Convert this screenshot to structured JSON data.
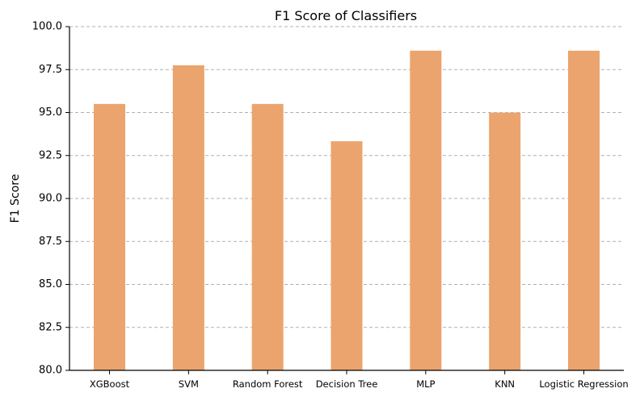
{
  "chart_data": {
    "type": "bar",
    "title": "F1 Score of Classifiers",
    "xlabel": "",
    "ylabel": "F1 Score",
    "categories": [
      "XGBoost",
      "SVM",
      "Random Forest",
      "Decision Tree",
      "MLP",
      "KNN",
      "Logistic Regression"
    ],
    "values": [
      95.5,
      97.75,
      95.5,
      93.33,
      98.6,
      95.0,
      98.6
    ],
    "ylim": [
      80.0,
      100.0
    ],
    "yticks": [
      "80.0",
      "82.5",
      "85.0",
      "87.5",
      "90.0",
      "92.5",
      "95.0",
      "97.5",
      "100.0"
    ],
    "grid": "y-dashed",
    "bar_color": "#eba46e"
  }
}
